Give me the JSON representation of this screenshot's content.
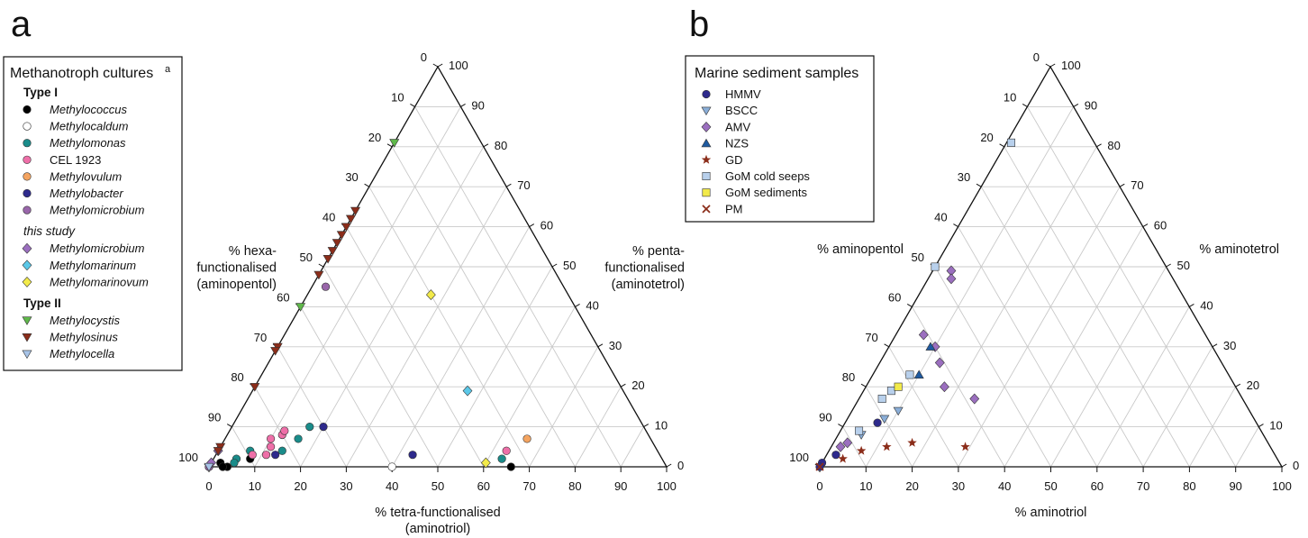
{
  "colors": {
    "Methylococcus": "#000000",
    "Methylocaldum": "#ffffff",
    "Methylomonas": "#1a8c8a",
    "CEL 1923": "#ee6fa8",
    "Methylovulum": "#f4a460",
    "Methylobacter": "#2e2a8c",
    "Methylomicrobium": "#9966aa",
    "Methylomicrobium (this study)": "#9b6fbf",
    "Methylomarinum": "#5bc8e8",
    "Methylomarinovum": "#f2ea4a",
    "Methylocystis": "#5fb84a",
    "Methylosinus": "#8b2d1a",
    "Methylocella": "#a8c4e8",
    "HMMV": "#2e2a8c",
    "BSCC": "#8aaed8",
    "AMV": "#9b6fbf",
    "NZS": "#1e5aa0",
    "GD": "#8b2d1a",
    "GoM cold seeps": "#b8d0ec",
    "GoM sediments": "#f2ea4a",
    "PM": "#8b2d1a"
  },
  "panels": {
    "a": {
      "label": "a",
      "legend": {
        "title": "Methanotroph cultures",
        "title_sup": "a",
        "groups": [
          {
            "heading": "Type I",
            "style": "bold",
            "items": [
              {
                "label": "Methylococcus",
                "marker": "circle",
                "italic": true
              },
              {
                "label": "Methylocaldum",
                "marker": "circle",
                "italic": true
              },
              {
                "label": "Methylomonas",
                "marker": "circle",
                "italic": true
              },
              {
                "label": "CEL 1923",
                "marker": "circle",
                "italic": false
              },
              {
                "label": "Methylovulum",
                "marker": "circle",
                "italic": true
              },
              {
                "label": "Methylobacter",
                "marker": "circle",
                "italic": true
              },
              {
                "label": "Methylomicrobium",
                "marker": "circle",
                "italic": true
              }
            ]
          },
          {
            "heading": "this study",
            "style": "italic",
            "items": [
              {
                "label": "Methylomicrobium",
                "marker": "diamond",
                "italic": true
              },
              {
                "label": "Methylomarinum",
                "marker": "diamond",
                "italic": true
              },
              {
                "label": "Methylomarinovum",
                "marker": "diamond",
                "italic": true
              }
            ]
          },
          {
            "heading": "Type II",
            "style": "bold",
            "items": [
              {
                "label": "Methylocystis",
                "marker": "tri-down",
                "italic": true
              },
              {
                "label": "Methylosinus",
                "marker": "tri-down",
                "italic": true
              },
              {
                "label": "Methylocella",
                "marker": "tri-down",
                "italic": true
              }
            ]
          }
        ]
      },
      "left_label": [
        "% hexa-",
        "functionalised",
        "(aminopentol)"
      ],
      "right_label": [
        "% penta-",
        "functionalised",
        "(aminotetrol)"
      ],
      "bottom_label": [
        "% tetra-functionalised",
        "(aminotriol)"
      ]
    },
    "b": {
      "label": "b",
      "legend": {
        "title": "Marine sediment samples",
        "items": [
          {
            "label": "HMMV",
            "marker": "circle"
          },
          {
            "label": "BSCC",
            "marker": "tri-down"
          },
          {
            "label": "AMV",
            "marker": "diamond"
          },
          {
            "label": "NZS",
            "marker": "tri-up"
          },
          {
            "label": "GD",
            "marker": "star"
          },
          {
            "label": "GoM cold seeps",
            "marker": "square"
          },
          {
            "label": "GoM sediments",
            "marker": "square"
          },
          {
            "label": "PM",
            "marker": "cross"
          }
        ]
      },
      "left_label": [
        "% aminopentol"
      ],
      "right_label": [
        "% aminotetrol"
      ],
      "bottom_label": [
        "% aminotriol"
      ]
    }
  },
  "chart_data": [
    {
      "type": "scatter",
      "subtype": "ternary",
      "panel": "a",
      "components": [
        "aminotriol",
        "aminotetrol",
        "aminopentol"
      ],
      "ticks": [
        0,
        10,
        20,
        30,
        40,
        50,
        60,
        70,
        80,
        90,
        100
      ],
      "grid": true,
      "series": [
        {
          "name": "Methylococcus",
          "marker": "circle",
          "points": [
            [
              66,
              0,
              34
            ],
            [
              8,
              2,
              90
            ],
            [
              2,
              1,
              97
            ],
            [
              4,
              0,
              96
            ],
            [
              3,
              0,
              97
            ]
          ]
        },
        {
          "name": "Methylocaldum",
          "marker": "circle",
          "points": [
            [
              0,
              0,
              100
            ],
            [
              40,
              0,
              60
            ]
          ]
        },
        {
          "name": "Methylomonas",
          "marker": "circle",
          "points": [
            [
              63,
              2,
              35
            ],
            [
              17,
              10,
              73
            ],
            [
              7,
              4,
              89
            ],
            [
              5,
              2,
              93
            ],
            [
              5,
              1,
              94
            ],
            [
              14,
              4,
              82
            ],
            [
              16,
              7,
              77
            ]
          ]
        },
        {
          "name": "CEL 1923",
          "marker": "circle",
          "points": [
            [
              63,
              4,
              33
            ],
            [
              11,
              5,
              84
            ],
            [
              12,
              8,
              80
            ],
            [
              10,
              7,
              83
            ],
            [
              12,
              9,
              79
            ],
            [
              8,
              3,
              89
            ],
            [
              11,
              3,
              86
            ]
          ]
        },
        {
          "name": "Methylovulum",
          "marker": "circle",
          "points": [
            [
              66,
              7,
              27
            ]
          ]
        },
        {
          "name": "Methylobacter",
          "marker": "circle",
          "points": [
            [
              20,
              10,
              70
            ],
            [
              13,
              3,
              84
            ],
            [
              43,
              3,
              54
            ]
          ]
        },
        {
          "name": "Methylomicrobium",
          "marker": "circle",
          "points": [
            [
              3,
              45,
              52
            ],
            [
              0,
              0,
              100
            ]
          ]
        },
        {
          "name": "Methylomicrobium (this study)",
          "marker": "diamond",
          "points": [
            [
              0,
              4,
              96
            ],
            [
              0,
              1,
              99
            ]
          ]
        },
        {
          "name": "Methylomarinum",
          "marker": "diamond",
          "points": [
            [
              47,
              19,
              34
            ]
          ]
        },
        {
          "name": "Methylomarinovum",
          "marker": "diamond",
          "points": [
            [
              60,
              1,
              39
            ],
            [
              27,
              43,
              30
            ]
          ]
        },
        {
          "name": "Methylocystis",
          "marker": "tri-down",
          "points": [
            [
              0,
              81,
              19
            ],
            [
              0,
              40,
              60
            ]
          ]
        },
        {
          "name": "Methylosinus",
          "marker": "tri-down",
          "points": [
            [
              0,
              64,
              36
            ],
            [
              0,
              62,
              38
            ],
            [
              0,
              60,
              40
            ],
            [
              0,
              58,
              42
            ],
            [
              0,
              56,
              44
            ],
            [
              0,
              54,
              46
            ],
            [
              0,
              52,
              48
            ],
            [
              0,
              48,
              52
            ],
            [
              0,
              30,
              70
            ],
            [
              0,
              29,
              71
            ],
            [
              0,
              20,
              80
            ],
            [
              0,
              5,
              95
            ],
            [
              0,
              4,
              96
            ]
          ]
        },
        {
          "name": "Methylocella",
          "marker": "tri-down",
          "points": [
            [
              0,
              0,
              100
            ]
          ]
        }
      ]
    },
    {
      "type": "scatter",
      "subtype": "ternary",
      "panel": "b",
      "components": [
        "aminotriol",
        "aminotetrol",
        "aminopentol"
      ],
      "ticks": [
        0,
        10,
        20,
        30,
        40,
        50,
        60,
        70,
        80,
        90,
        100
      ],
      "grid": true,
      "series": [
        {
          "name": "HMMV",
          "marker": "circle",
          "points": [
            [
              7,
              11,
              82
            ],
            [
              2,
              3,
              95
            ],
            [
              0,
              1,
              99
            ],
            [
              0,
              0,
              100
            ]
          ]
        },
        {
          "name": "BSCC",
          "marker": "tri-down",
          "points": [
            [
              10,
              14,
              76
            ],
            [
              8,
              12,
              80
            ],
            [
              5,
              8,
              87
            ]
          ]
        },
        {
          "name": "AMV",
          "marker": "diamond",
          "points": [
            [
              4,
              49,
              47
            ],
            [
              5,
              47,
              48
            ],
            [
              10,
              30,
              60
            ],
            [
              13,
              26,
              61
            ],
            [
              17,
              20,
              63
            ],
            [
              25,
              17,
              58
            ],
            [
              6,
              33,
              61
            ],
            [
              3,
              6,
              91
            ],
            [
              2,
              5,
              93
            ]
          ]
        },
        {
          "name": "NZS",
          "marker": "tri-up",
          "points": [
            [
              9,
              30,
              61
            ],
            [
              10,
              23,
              67
            ]
          ]
        },
        {
          "name": "GD",
          "marker": "star",
          "points": [
            [
              29,
              5,
              66
            ],
            [
              17,
              6,
              77
            ],
            [
              12,
              5,
              83
            ],
            [
              7,
              4,
              89
            ],
            [
              4,
              2,
              94
            ]
          ]
        },
        {
          "name": "GoM cold seeps",
          "marker": "square",
          "points": [
            [
              1,
              81,
              18
            ],
            [
              0,
              50,
              50
            ],
            [
              8,
              23,
              69
            ],
            [
              6,
              19,
              75
            ],
            [
              5,
              17,
              78
            ],
            [
              4,
              9,
              87
            ]
          ]
        },
        {
          "name": "GoM sediments",
          "marker": "square",
          "points": [
            [
              7,
              20,
              73
            ]
          ]
        },
        {
          "name": "PM",
          "marker": "cross",
          "points": [
            [
              0,
              0,
              100
            ]
          ]
        }
      ]
    }
  ]
}
